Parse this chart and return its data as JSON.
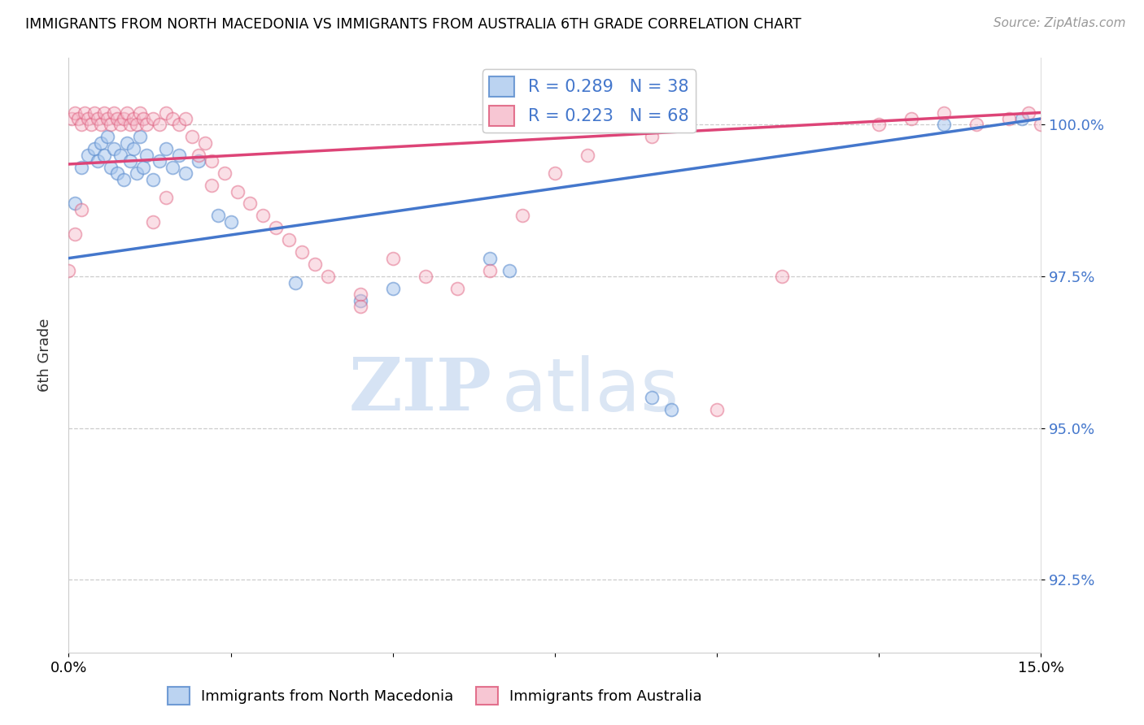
{
  "title": "IMMIGRANTS FROM NORTH MACEDONIA VS IMMIGRANTS FROM AUSTRALIA 6TH GRADE CORRELATION CHART",
  "source": "Source: ZipAtlas.com",
  "ylabel": "6th Grade",
  "y_ticks": [
    92.5,
    95.0,
    97.5,
    100.0
  ],
  "y_tick_labels": [
    "92.5%",
    "95.0%",
    "97.5%",
    "100.0%"
  ],
  "xlim": [
    0.0,
    15.0
  ],
  "ylim": [
    91.3,
    101.1
  ],
  "blue_color": "#aac8ee",
  "blue_edge": "#5588cc",
  "pink_color": "#f5b8c8",
  "pink_edge": "#dd5577",
  "blue_line_color": "#4477cc",
  "pink_line_color": "#dd4477",
  "blue_scatter_x": [
    0.1,
    0.2,
    0.3,
    0.4,
    0.45,
    0.5,
    0.55,
    0.6,
    0.65,
    0.7,
    0.75,
    0.8,
    0.85,
    0.9,
    0.95,
    1.0,
    1.05,
    1.1,
    1.15,
    1.2,
    1.3,
    1.4,
    1.5,
    1.6,
    1.7,
    1.8,
    2.0,
    2.3,
    2.5,
    3.5,
    4.5,
    5.0,
    6.5,
    6.8,
    9.0,
    9.3,
    13.5,
    14.7
  ],
  "blue_scatter_y": [
    98.7,
    99.3,
    99.5,
    99.6,
    99.4,
    99.7,
    99.5,
    99.8,
    99.3,
    99.6,
    99.2,
    99.5,
    99.1,
    99.7,
    99.4,
    99.6,
    99.2,
    99.8,
    99.3,
    99.5,
    99.1,
    99.4,
    99.6,
    99.3,
    99.5,
    99.2,
    99.4,
    98.5,
    98.4,
    97.4,
    97.1,
    97.3,
    97.8,
    97.6,
    95.5,
    95.3,
    100.0,
    100.1
  ],
  "pink_scatter_x": [
    0.05,
    0.1,
    0.15,
    0.2,
    0.25,
    0.3,
    0.35,
    0.4,
    0.45,
    0.5,
    0.55,
    0.6,
    0.65,
    0.7,
    0.75,
    0.8,
    0.85,
    0.9,
    0.95,
    1.0,
    1.05,
    1.1,
    1.15,
    1.2,
    1.3,
    1.4,
    1.5,
    1.6,
    1.7,
    1.8,
    1.9,
    2.0,
    2.1,
    2.2,
    2.4,
    2.6,
    2.8,
    3.0,
    3.2,
    3.4,
    3.6,
    3.8,
    4.0,
    4.5,
    5.0,
    5.5,
    6.0,
    6.5,
    7.0,
    7.5,
    8.0,
    9.0,
    10.0,
    11.0,
    12.5,
    13.0,
    13.5,
    14.0,
    14.5,
    14.8,
    15.0,
    0.0,
    0.1,
    0.2,
    1.3,
    1.5,
    2.2,
    4.5
  ],
  "pink_scatter_y": [
    100.1,
    100.2,
    100.1,
    100.0,
    100.2,
    100.1,
    100.0,
    100.2,
    100.1,
    100.0,
    100.2,
    100.1,
    100.0,
    100.2,
    100.1,
    100.0,
    100.1,
    100.2,
    100.0,
    100.1,
    100.0,
    100.2,
    100.1,
    100.0,
    100.1,
    100.0,
    100.2,
    100.1,
    100.0,
    100.1,
    99.8,
    99.5,
    99.7,
    99.4,
    99.2,
    98.9,
    98.7,
    98.5,
    98.3,
    98.1,
    97.9,
    97.7,
    97.5,
    97.2,
    97.8,
    97.5,
    97.3,
    97.6,
    98.5,
    99.2,
    99.5,
    99.8,
    95.3,
    97.5,
    100.0,
    100.1,
    100.2,
    100.0,
    100.1,
    100.2,
    100.0,
    97.6,
    98.2,
    98.6,
    98.4,
    98.8,
    99.0,
    97.0
  ],
  "blue_line_x": [
    0.0,
    15.0
  ],
  "blue_line_y": [
    97.8,
    100.1
  ],
  "pink_line_x": [
    0.0,
    15.0
  ],
  "pink_line_y": [
    99.35,
    100.2
  ],
  "watermark_zip": "ZIP",
  "watermark_atlas": "atlas"
}
